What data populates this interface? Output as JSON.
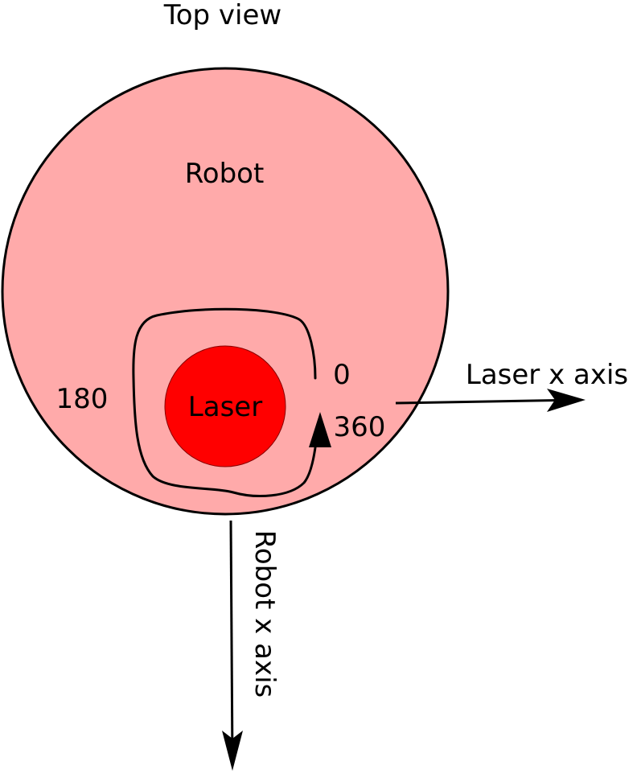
{
  "title": "Top view",
  "robot": {
    "label": "Robot",
    "fill_color": "#ffaaaa",
    "stroke_color": "#000000"
  },
  "laser": {
    "label": "Laser",
    "fill_color": "#ff0000"
  },
  "angles": {
    "start": "0",
    "half": "180",
    "full": "360"
  },
  "axes": {
    "laser_x": "Laser x axis",
    "robot_x": "Robot x axis"
  }
}
